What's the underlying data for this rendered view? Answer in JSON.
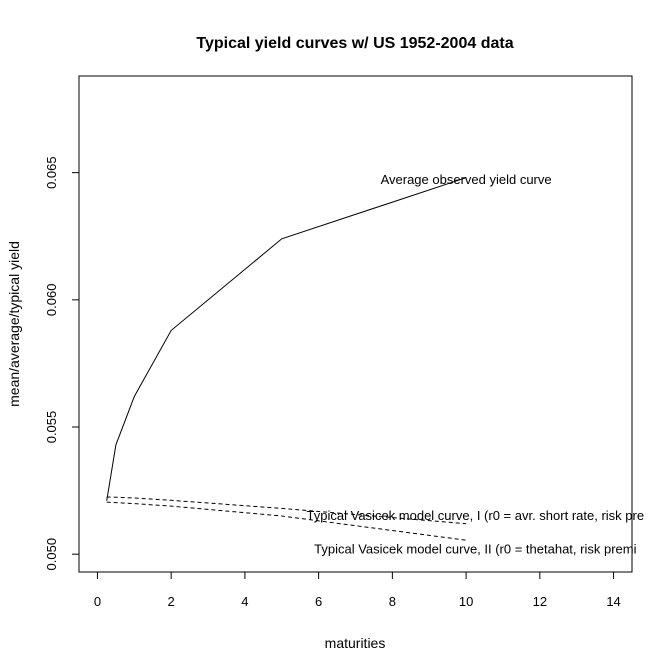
{
  "chart_data": {
    "type": "line",
    "title": "Typical yield curves w/ US  1952-2004 data",
    "xlabel": "maturities",
    "ylabel": "mean/average/typical yield",
    "xlim": [
      -0.5,
      14.5
    ],
    "ylim": [
      0.0493,
      0.0688
    ],
    "x_ticks": [
      0,
      2,
      4,
      6,
      8,
      10,
      12,
      14
    ],
    "x_tick_labels": [
      "0",
      "2",
      "4",
      "6",
      "8",
      "10",
      "12",
      "14"
    ],
    "y_ticks": [
      0.05,
      0.055,
      0.06,
      0.065
    ],
    "y_tick_labels": [
      "0.050",
      "0.055",
      "0.060",
      "0.065"
    ],
    "grid": false,
    "legend": "none",
    "series": [
      {
        "style": "solid",
        "x": [
          0.25,
          0.5,
          1,
          2,
          5,
          10
        ],
        "y": [
          0.0521,
          0.0543,
          0.0562,
          0.0588,
          0.0624,
          0.0648
        ]
      },
      {
        "style": "dashed",
        "x": [
          0.25,
          0.5,
          1,
          2,
          5,
          10
        ],
        "y": [
          0.05225,
          0.05224,
          0.05221,
          0.05212,
          0.0518,
          0.0512
        ]
      },
      {
        "style": "dashed",
        "x": [
          0.25,
          0.5,
          1,
          2,
          5,
          10
        ],
        "y": [
          0.05205,
          0.05203,
          0.05199,
          0.05189,
          0.0515,
          0.05055
        ]
      }
    ],
    "annotations": [
      {
        "text": "Average observed yield curve",
        "x": 10,
        "y": 0.06475
      },
      {
        "text": "Typical Vasicek model curve, I (r0 = avr. short rate, risk pre",
        "x": 10.25,
        "y": 0.05155
      },
      {
        "text": "Typical Vasicek model curve, II (r0 = thetahat, risk premi",
        "x": 10.25,
        "y": 0.05022
      }
    ]
  }
}
